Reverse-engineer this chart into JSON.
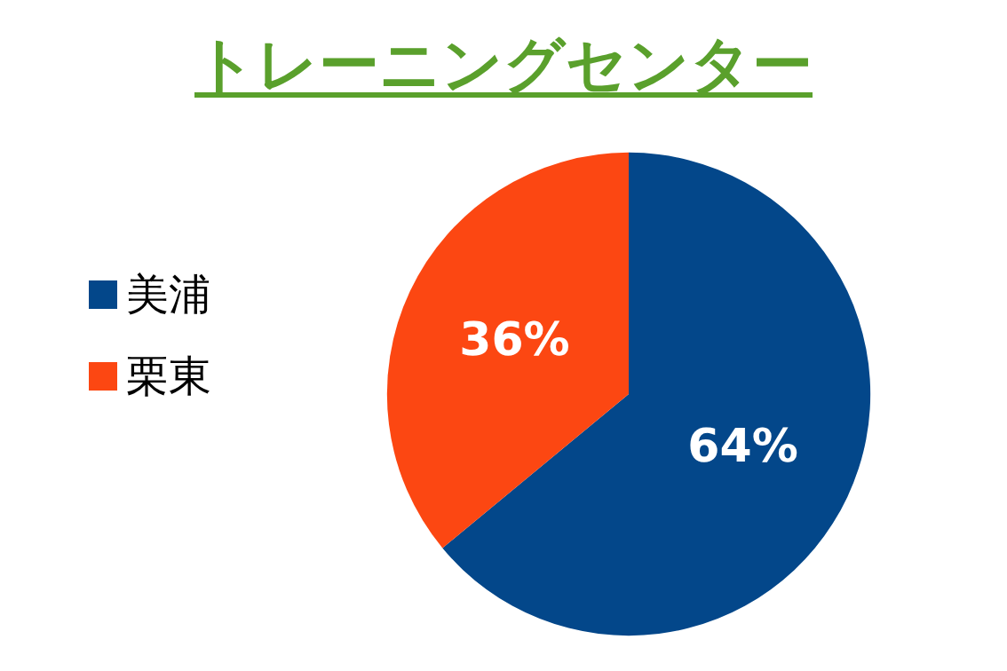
{
  "chart_data": {
    "type": "pie",
    "title": "トレーニングセンター",
    "categories": [
      "美浦",
      "栗東"
    ],
    "values": [
      64,
      36
    ],
    "colors": [
      "#03478a",
      "#fc4712"
    ],
    "value_labels": [
      "64%",
      "36%"
    ],
    "legend": "left"
  }
}
